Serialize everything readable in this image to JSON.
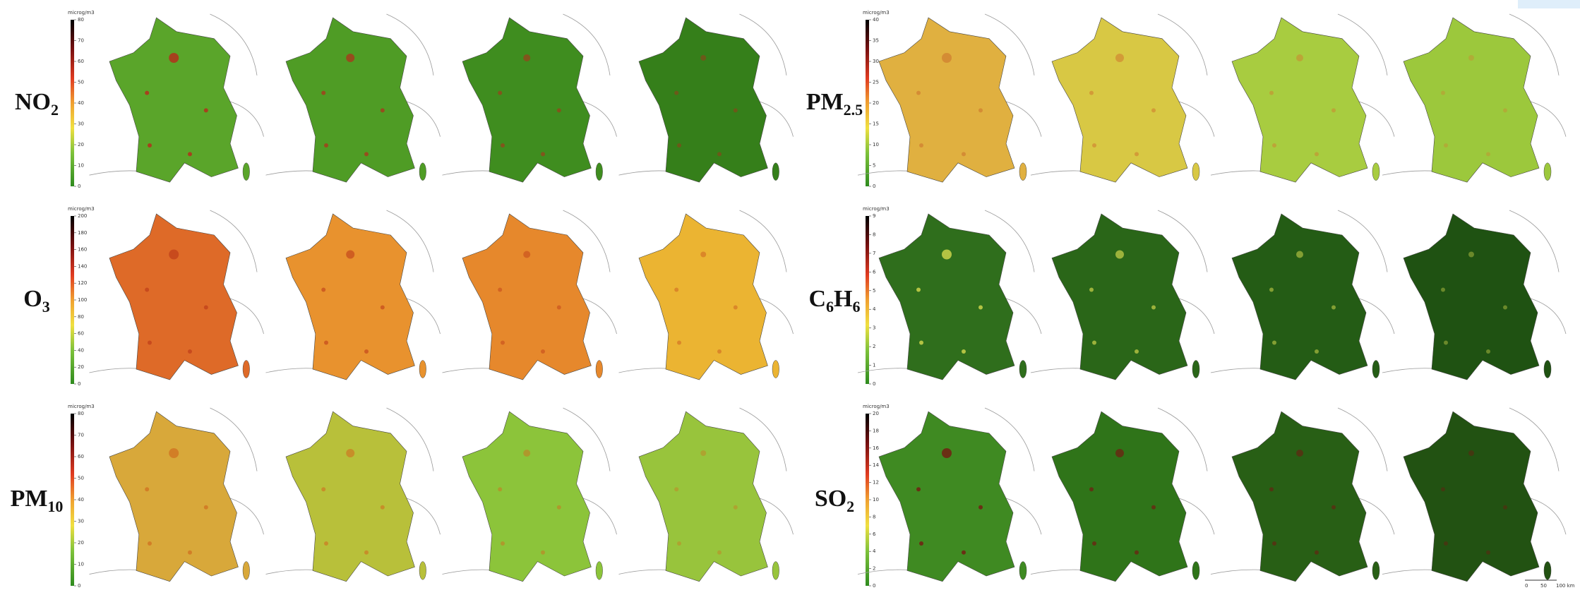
{
  "panels": [
    {
      "label": {
        "main": "NO",
        "sub": "2"
      },
      "colorbar": {
        "unit": "microg/m3",
        "lim": [
          0,
          80
        ],
        "ticks": [
          0,
          10,
          20,
          30,
          40,
          50,
          60,
          70,
          80
        ]
      }
    },
    {
      "label": {
        "main": "O",
        "sub": "3"
      },
      "colorbar": {
        "unit": "microg/m3",
        "lim": [
          0,
          200
        ],
        "ticks": [
          0,
          20,
          40,
          60,
          80,
          100,
          120,
          140,
          160,
          180,
          200
        ]
      }
    },
    {
      "label": {
        "main": "PM",
        "sub": "10"
      },
      "colorbar": {
        "unit": "microg/m3",
        "lim": [
          0,
          80
        ],
        "ticks": [
          0,
          10,
          20,
          30,
          40,
          50,
          60,
          70,
          80
        ]
      }
    },
    {
      "label": {
        "main": "PM",
        "sub": "2.5"
      },
      "colorbar": {
        "unit": "microg/m3",
        "lim": [
          0,
          40
        ],
        "ticks": [
          0,
          5,
          10,
          15,
          20,
          25,
          30,
          35,
          40
        ]
      }
    },
    {
      "label": {
        "main": "C",
        "sub": "6",
        "main2": "H",
        "sub2": "6"
      },
      "colorbar": {
        "unit": "microg/m3",
        "lim": [
          0,
          9
        ],
        "ticks": [
          0,
          1,
          2,
          3,
          4,
          5,
          6,
          7,
          8,
          9
        ]
      }
    },
    {
      "label": {
        "main": "SO",
        "sub": "2"
      },
      "colorbar": {
        "unit": "microg/m3",
        "lim": [
          0,
          20
        ],
        "ticks": [
          0,
          2,
          4,
          6,
          8,
          10,
          12,
          14,
          16,
          18,
          20
        ]
      }
    }
  ],
  "scale_bar": [
    "0",
    "50",
    "100 km"
  ]
}
